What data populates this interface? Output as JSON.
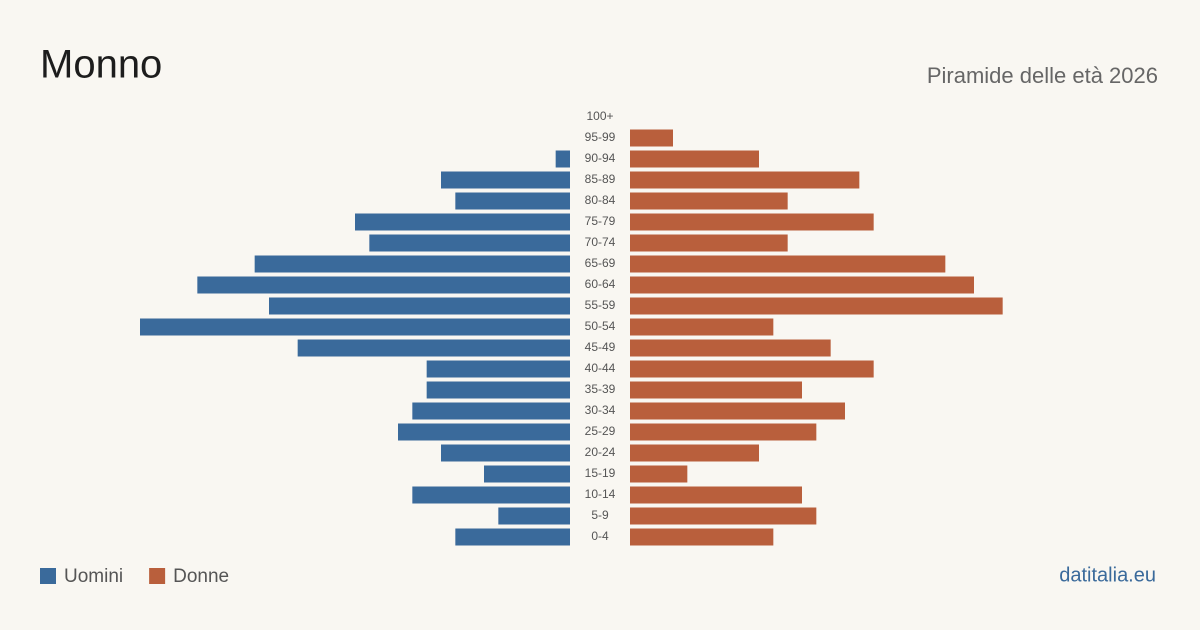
{
  "chart_data": {
    "type": "pyramid",
    "title": "Monno",
    "subtitle": "Piramide delle età 2026",
    "source": "datitalia.eu",
    "categories": [
      "100+",
      "95-99",
      "90-94",
      "85-89",
      "80-84",
      "75-79",
      "70-74",
      "65-69",
      "60-64",
      "55-59",
      "50-54",
      "45-49",
      "40-44",
      "35-39",
      "30-34",
      "25-29",
      "20-24",
      "15-19",
      "10-14",
      "5-9",
      "0-4"
    ],
    "series": [
      {
        "name": "Uomini",
        "color": "#3a6a9b",
        "values": [
          0,
          0,
          1,
          9,
          8,
          15,
          14,
          22,
          26,
          21,
          30,
          19,
          10,
          10,
          11,
          12,
          9,
          6,
          11,
          5,
          8
        ]
      },
      {
        "name": "Donne",
        "color": "#b95f3c",
        "values": [
          0,
          3,
          9,
          16,
          11,
          17,
          11,
          22,
          24,
          26,
          10,
          14,
          17,
          12,
          15,
          13,
          9,
          4,
          12,
          13,
          10
        ]
      }
    ]
  }
}
